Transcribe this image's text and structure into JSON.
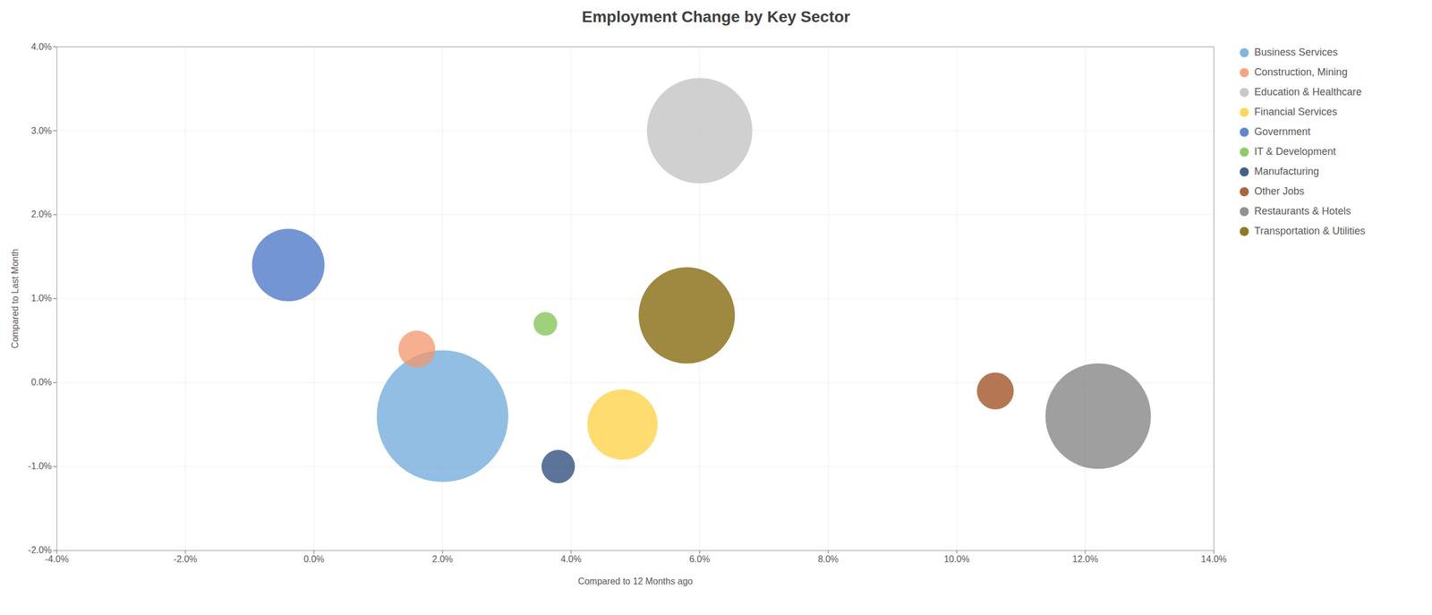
{
  "chart_data": {
    "type": "scatter",
    "title": "Employment Change by Key Sector",
    "xlabel": "Compared to 12 Months ago",
    "ylabel": "Compared to Last Month",
    "xlim": [
      -0.04,
      0.14
    ],
    "ylim": [
      -0.02,
      0.04
    ],
    "xticks": [
      {
        "value": -0.04,
        "label": "-4.0%"
      },
      {
        "value": -0.02,
        "label": "-2.0%"
      },
      {
        "value": 0.0,
        "label": "0.0%"
      },
      {
        "value": 0.02,
        "label": "2.0%"
      },
      {
        "value": 0.04,
        "label": "4.0%"
      },
      {
        "value": 0.06,
        "label": "6.0%"
      },
      {
        "value": 0.08,
        "label": "8.0%"
      },
      {
        "value": 0.1,
        "label": "10.0%"
      },
      {
        "value": 0.12,
        "label": "12.0%"
      },
      {
        "value": 0.14,
        "label": "14.0%"
      }
    ],
    "yticks": [
      {
        "value": -0.02,
        "label": "-2.0%"
      },
      {
        "value": -0.01,
        "label": "-1.0%"
      },
      {
        "value": 0.0,
        "label": "0.0%"
      },
      {
        "value": 0.01,
        "label": "1.0%"
      },
      {
        "value": 0.02,
        "label": "2.0%"
      },
      {
        "value": 0.03,
        "label": "3.0%"
      },
      {
        "value": 0.04,
        "label": "4.0%"
      }
    ],
    "grid": true,
    "legend": "right",
    "series": [
      {
        "name": "Business Services",
        "color": "#6CA8D8",
        "x": [
          0.02
        ],
        "values": [
          -0.004
        ],
        "size": [
          28000
        ]
      },
      {
        "name": "Construction, Mining",
        "color": "#F4956A",
        "x": [
          0.016
        ],
        "values": [
          0.004
        ],
        "size": [
          2200
        ]
      },
      {
        "name": "Education & Healthcare",
        "color": "#C0C0C0",
        "x": [
          0.06
        ],
        "values": [
          0.03
        ],
        "size": [
          18000
        ]
      },
      {
        "name": "Financial Services",
        "color": "#FFD040",
        "x": [
          0.048
        ],
        "values": [
          -0.005
        ],
        "size": [
          8000
        ]
      },
      {
        "name": "Government",
        "color": "#4472C4",
        "x": [
          -0.004
        ],
        "values": [
          0.014
        ],
        "size": [
          8500
        ]
      },
      {
        "name": "IT & Development",
        "color": "#7DC250",
        "x": [
          0.036
        ],
        "values": [
          0.007
        ],
        "size": [
          900
        ]
      },
      {
        "name": "Manufacturing",
        "color": "#264478",
        "x": [
          0.038
        ],
        "values": [
          -0.01
        ],
        "size": [
          1800
        ]
      },
      {
        "name": "Other Jobs",
        "color": "#9C4A1A",
        "x": [
          0.106
        ],
        "values": [
          -0.001
        ],
        "size": [
          2200
        ]
      },
      {
        "name": "Restaurants & Hotels",
        "color": "#7F7F7F",
        "x": [
          0.122
        ],
        "values": [
          -0.004
        ],
        "size": [
          18000
        ]
      },
      {
        "name": "Transportation & Utilities",
        "color": "#7F6000",
        "x": [
          0.058
        ],
        "values": [
          0.008
        ],
        "size": [
          15000
        ]
      }
    ]
  }
}
